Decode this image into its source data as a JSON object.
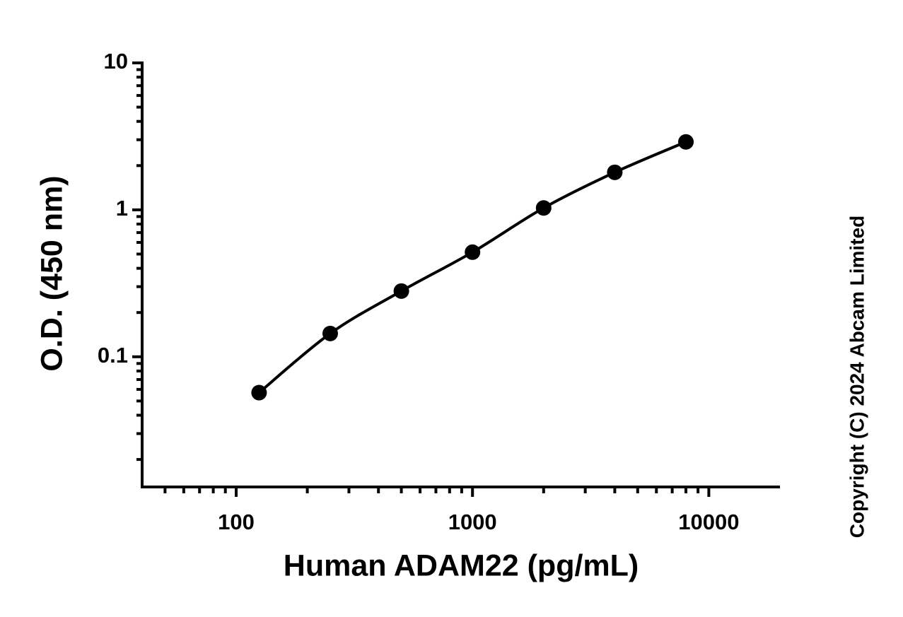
{
  "chart_data": {
    "type": "scatter-line",
    "xlabel": "Human ADAM22 (pg/mL)",
    "ylabel": "O.D. (450 nm)",
    "annotation": "Copyright (C) 2024 Abcam Limited",
    "xscale": "log",
    "yscale": "log",
    "xlim": [
      40,
      20000
    ],
    "ylim": [
      0.013,
      10
    ],
    "xticks": [
      100,
      1000,
      10000
    ],
    "yticks": [
      0.1,
      1,
      10
    ],
    "xminorticks": [
      50,
      60,
      70,
      80,
      90,
      200,
      300,
      400,
      500,
      600,
      700,
      800,
      900,
      2000,
      3000,
      4000,
      5000,
      6000,
      7000,
      8000,
      9000
    ],
    "yminorticks": [
      0.02,
      0.03,
      0.04,
      0.05,
      0.06,
      0.07,
      0.08,
      0.09,
      0.2,
      0.3,
      0.4,
      0.5,
      0.6,
      0.7,
      0.8,
      0.9,
      2,
      3,
      4,
      5,
      6,
      7,
      8,
      9
    ],
    "x": [
      125,
      250,
      500,
      1000,
      2000,
      4000,
      8000
    ],
    "series": [
      {
        "color": "#000000",
        "values": [
          0.057,
          0.144,
          0.28,
          0.515,
          1.03,
          1.8,
          2.9
        ]
      }
    ]
  }
}
